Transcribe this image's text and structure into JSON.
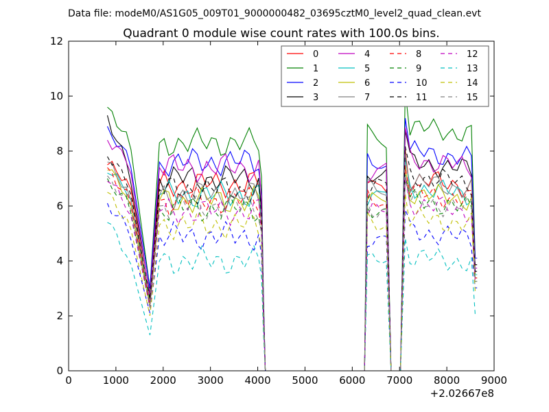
{
  "chart_data": {
    "type": "line",
    "suptitle": "Data file: modeM0/AS1G05_009T01_9000000482_03695cztM0_level2_quad_clean.evt",
    "title": "Quadrant 0 module wise count rates with 100.0s bins.",
    "xlabel": "",
    "ylabel": "",
    "xlim": [
      0,
      9000
    ],
    "ylim": [
      0,
      12
    ],
    "x_ticks": [
      0,
      1000,
      2000,
      3000,
      4000,
      5000,
      6000,
      7000,
      8000,
      9000
    ],
    "y_ticks": [
      0,
      2,
      4,
      6,
      8,
      10,
      12
    ],
    "x_offset_label": "+2.02667e8",
    "legend": {
      "position": "top-right",
      "columns": 4
    },
    "x": [
      820,
      920,
      1020,
      1120,
      1220,
      1320,
      1420,
      1520,
      1620,
      1720,
      1820,
      1920,
      2020,
      2120,
      2220,
      2320,
      2420,
      2520,
      2620,
      2720,
      2820,
      2920,
      3020,
      3120,
      3220,
      3320,
      3420,
      3520,
      3620,
      3720,
      3820,
      3920,
      4020,
      4080,
      4120,
      4160,
      6220,
      6260,
      6320,
      6420,
      6520,
      6620,
      6720,
      6820,
      6920,
      7020,
      7120,
      7220,
      7320,
      7420,
      7520,
      7620,
      7720,
      7820,
      7920,
      8020,
      8120,
      8220,
      8320,
      8420,
      8520,
      8600,
      8640
    ],
    "series": [
      {
        "name": "0",
        "color": "#ff0000",
        "dash": "solid",
        "base": 7.5,
        "dip": 2.5,
        "level": 6.8,
        "level2": 7.0
      },
      {
        "name": "1",
        "color": "#008000",
        "dash": "solid",
        "base": 9.6,
        "dip": 3.0,
        "level": 8.3,
        "level2": 8.9
      },
      {
        "name": "2",
        "color": "#0000ff",
        "dash": "solid",
        "base": 8.9,
        "dip": 3.0,
        "level": 7.6,
        "level2": 8.0
      },
      {
        "name": "3",
        "color": "#000000",
        "dash": "solid",
        "base": 9.3,
        "dip": 2.8,
        "level": 7.0,
        "level2": 7.6
      },
      {
        "name": "4",
        "color": "#bf00bf",
        "dash": "solid",
        "base": 8.4,
        "dip": 2.7,
        "level": 7.4,
        "level2": 7.7
      },
      {
        "name": "5",
        "color": "#00bfbf",
        "dash": "solid",
        "base": 7.2,
        "dip": 2.5,
        "level": 6.4,
        "level2": 6.7
      },
      {
        "name": "6",
        "color": "#bfbf00",
        "dash": "solid",
        "base": 7.3,
        "dip": 2.4,
        "level": 6.2,
        "level2": 6.5
      },
      {
        "name": "7",
        "color": "#808080",
        "dash": "solid",
        "base": 7.6,
        "dip": 2.6,
        "level": 6.4,
        "level2": 6.9
      },
      {
        "name": "8",
        "color": "#ff0000",
        "dash": "dashed",
        "base": 7.4,
        "dip": 2.4,
        "level": 6.2,
        "level2": 6.5
      },
      {
        "name": "9",
        "color": "#008000",
        "dash": "dashed",
        "base": 7.0,
        "dip": 2.3,
        "level": 5.9,
        "level2": 6.2
      },
      {
        "name": "10",
        "color": "#0000ff",
        "dash": "dashed",
        "base": 6.1,
        "dip": 2.1,
        "level": 4.9,
        "level2": 5.1
      },
      {
        "name": "11",
        "color": "#000000",
        "dash": "dashed",
        "base": 7.8,
        "dip": 2.6,
        "level": 6.6,
        "level2": 7.1
      },
      {
        "name": "12",
        "color": "#bf00bf",
        "dash": "dashed",
        "base": 6.9,
        "dip": 2.3,
        "level": 5.8,
        "level2": 6.1
      },
      {
        "name": "13",
        "color": "#00bfbf",
        "dash": "dashed",
        "base": 5.4,
        "dip": 1.3,
        "level": 4.0,
        "level2": 4.2
      },
      {
        "name": "14",
        "color": "#bfbf00",
        "dash": "dashed",
        "base": 6.5,
        "dip": 2.0,
        "level": 5.3,
        "level2": 5.6
      },
      {
        "name": "15",
        "color": "#808080",
        "dash": "dashed",
        "base": 7.1,
        "dip": 2.3,
        "level": 6.0,
        "level2": 6.2
      }
    ]
  }
}
